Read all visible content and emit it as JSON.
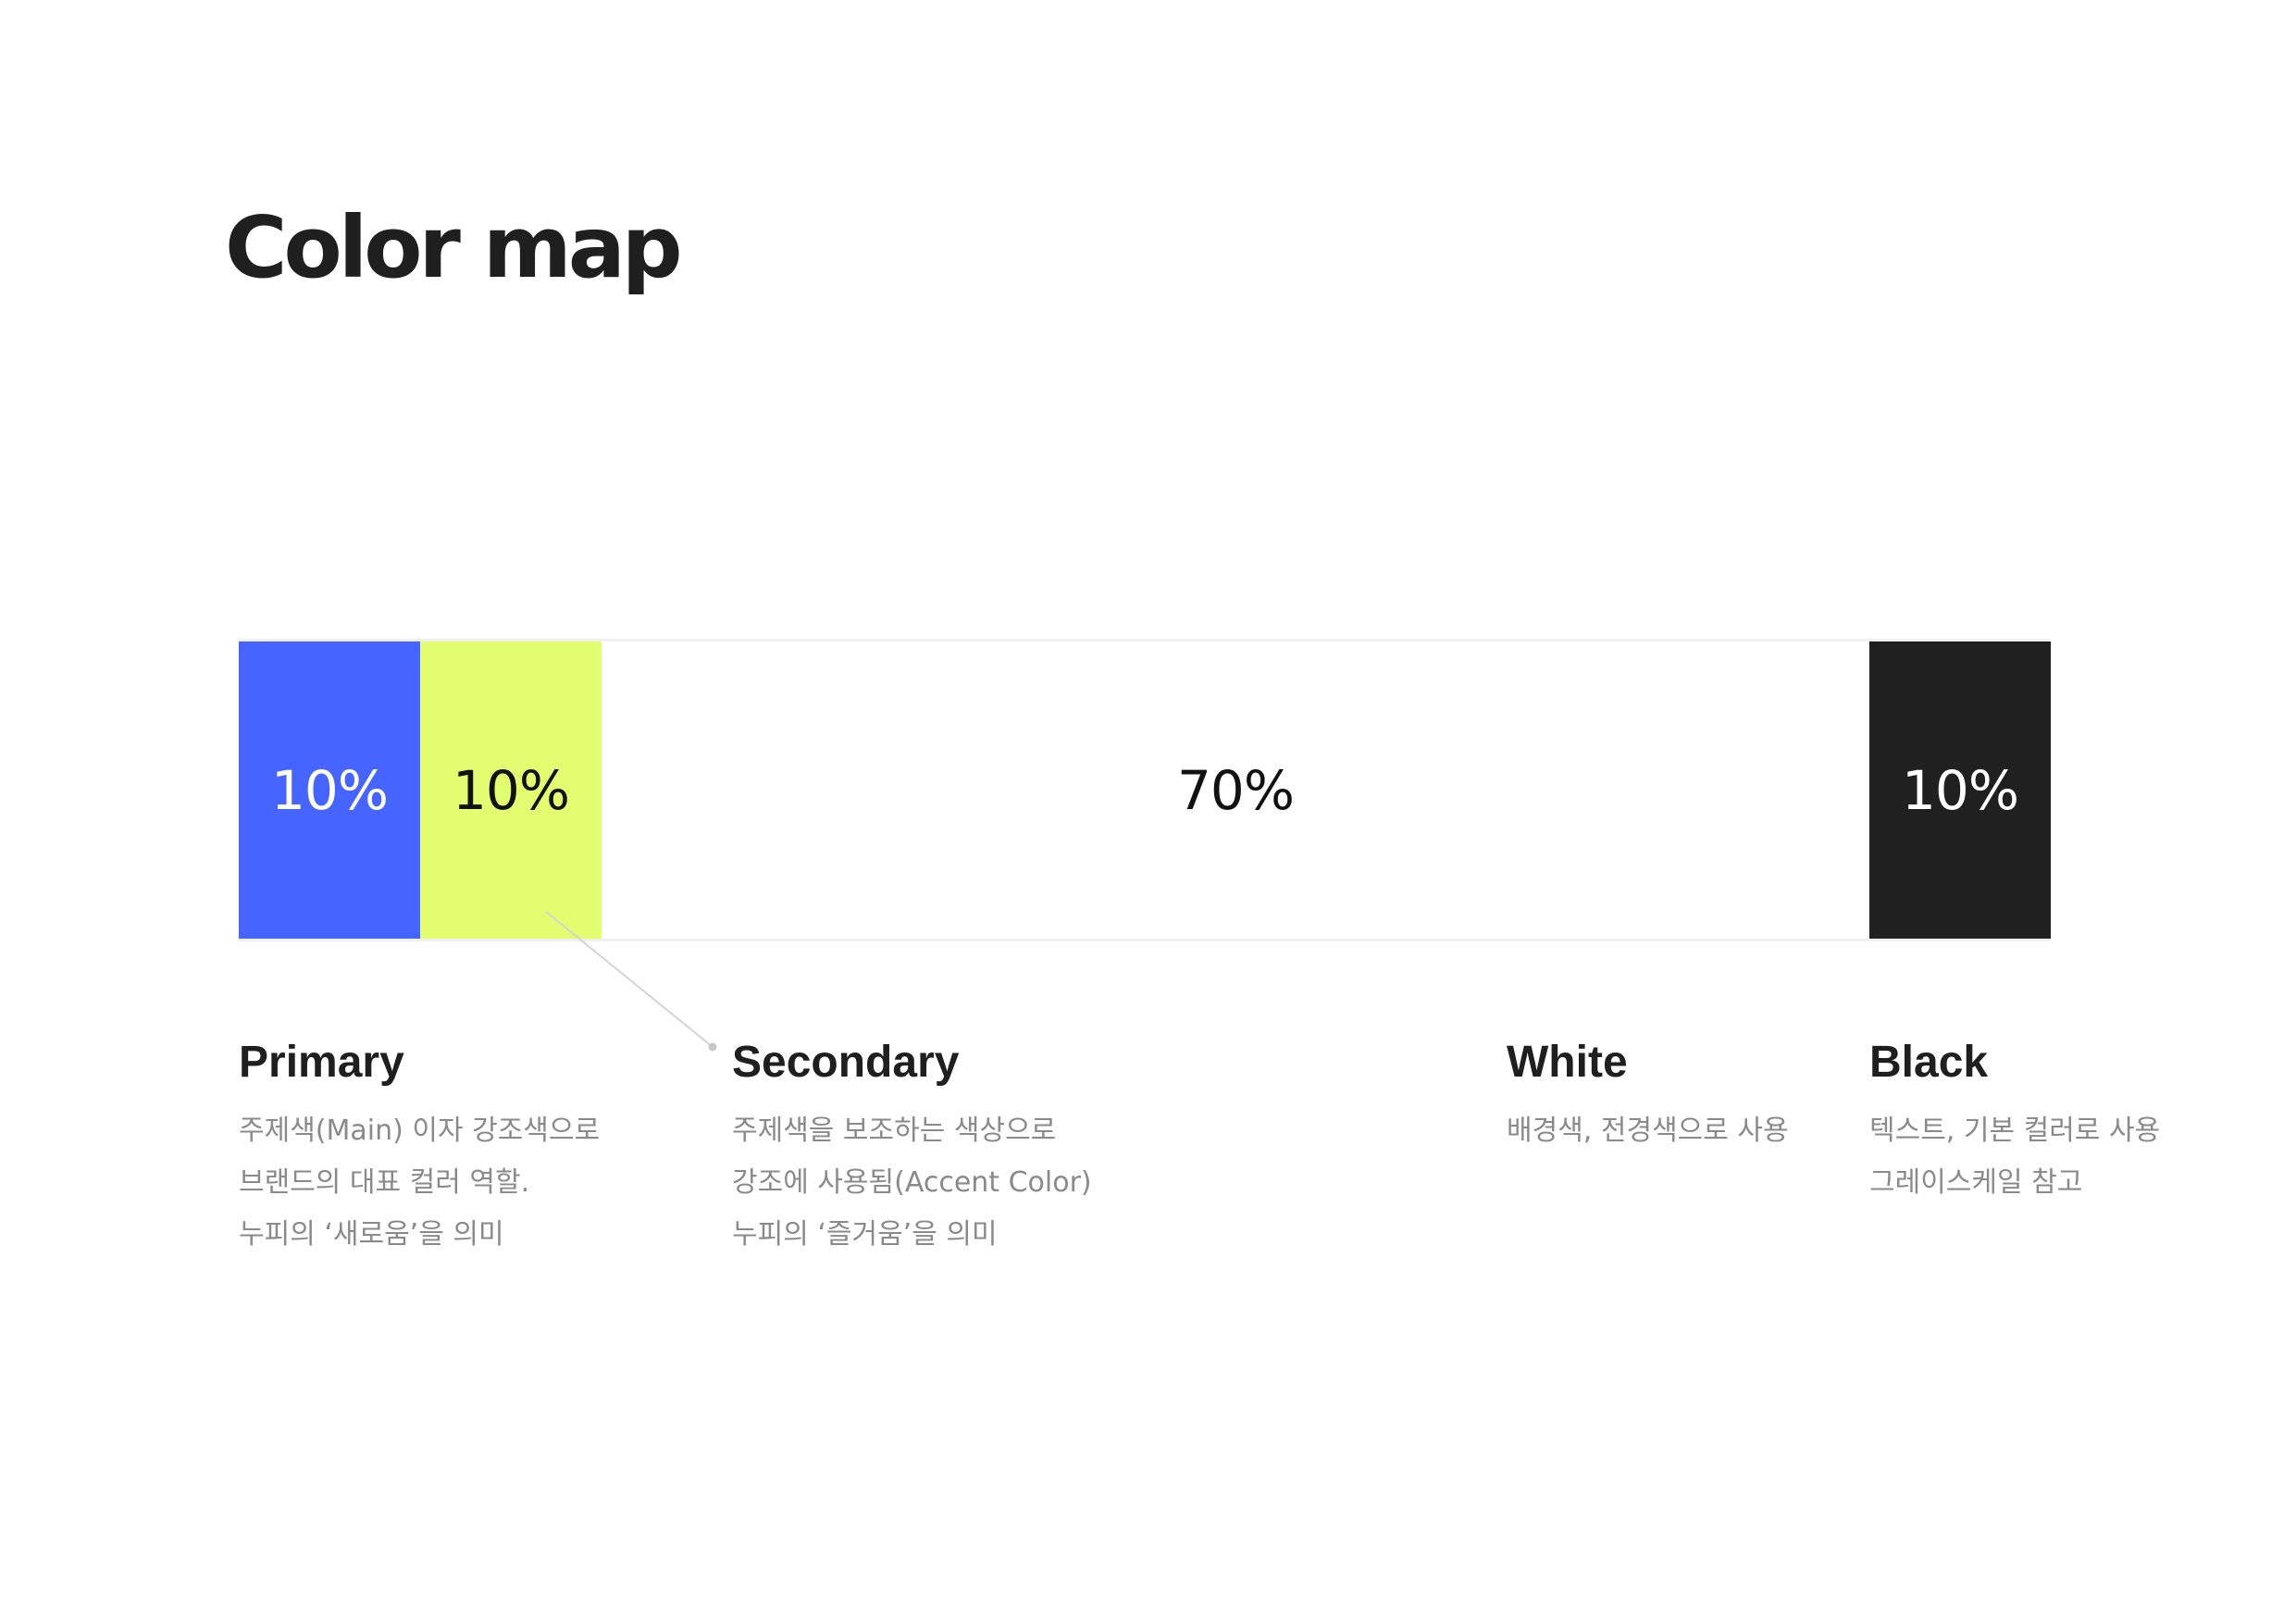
{
  "title": "Color map",
  "segments": [
    {
      "key": "primary",
      "percent_label": "10%",
      "color": "#4664ff",
      "text_color": "#ffffff"
    },
    {
      "key": "secondary",
      "percent_label": "10%",
      "color": "#e2fe70",
      "text_color": "#111111"
    },
    {
      "key": "white",
      "percent_label": "70%",
      "color": "#ffffff",
      "text_color": "#111111"
    },
    {
      "key": "black",
      "percent_label": "10%",
      "color": "#1f201f",
      "text_color": "#ffffff"
    }
  ],
  "legend": {
    "primary": {
      "name": "Primary",
      "lines": [
        "주제색(Main) 이자 강조색으로",
        "브랜드의 대표 컬러 역할.",
        "누피의 ‘새로움’을 의미"
      ]
    },
    "secondary": {
      "name": "Secondary",
      "lines": [
        "주제색을 보조하는 색상으로",
        "강조에 사용됨(Accent Color)",
        "누피의 ‘즐거움’을 의미"
      ]
    },
    "white": {
      "name": "White",
      "lines": [
        "배경색, 전경색으로 사용"
      ]
    },
    "black": {
      "name": "Black",
      "lines": [
        "텍스트, 기본 컬러로 사용",
        "그레이스케일 참고"
      ]
    }
  }
}
